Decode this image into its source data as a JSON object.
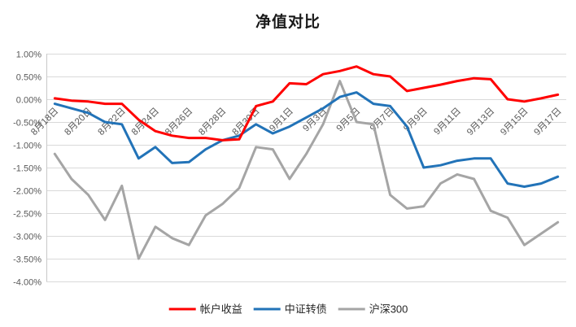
{
  "chart_data": {
    "type": "line",
    "title": "净值对比",
    "x_labels": [
      "8月18日",
      "8月20日",
      "8月22日",
      "8月24日",
      "8月26日",
      "8月28日",
      "8月30日",
      "9月1日",
      "9月3日",
      "9月5日",
      "9月7日",
      "9月9日",
      "9月11日",
      "9月13日",
      "9月15日",
      "9月17日"
    ],
    "label_every": 2,
    "y_ticks": [
      1.0,
      0.5,
      0.0,
      -0.5,
      -1.0,
      -1.5,
      -2.0,
      -2.5,
      -3.0,
      -3.5,
      -4.0
    ],
    "ylim": [
      -4.0,
      1.0
    ],
    "grid": "horizontal",
    "legend_position": "bottom",
    "colors": {
      "grid": "#d9d9d9",
      "axis_line": "#c9c9c9",
      "axis_text": "#595959",
      "title": "#1a1a1a"
    },
    "series": [
      {
        "name": "帐户收益",
        "color": "#ff0000",
        "values": [
          0.02,
          -0.03,
          -0.05,
          -0.1,
          -0.1,
          -0.45,
          -0.7,
          -0.8,
          -0.85,
          -0.85,
          -0.9,
          -0.88,
          -0.15,
          -0.05,
          0.35,
          0.33,
          0.55,
          0.62,
          0.72,
          0.55,
          0.5,
          0.18,
          0.25,
          0.32,
          0.4,
          0.46,
          0.44,
          0.0,
          -0.05,
          0.02,
          0.1
        ]
      },
      {
        "name": "中证转债",
        "color": "#2273b8",
        "values": [
          -0.1,
          -0.2,
          -0.3,
          -0.5,
          -0.55,
          -1.3,
          -1.05,
          -1.4,
          -1.38,
          -1.1,
          -0.9,
          -0.8,
          -0.55,
          -0.75,
          -0.6,
          -0.4,
          -0.2,
          0.05,
          0.15,
          -0.1,
          -0.15,
          -0.6,
          -1.5,
          -1.45,
          -1.35,
          -1.3,
          -1.3,
          -1.85,
          -1.92,
          -1.85,
          -1.7
        ]
      },
      {
        "name": "沪深300",
        "color": "#a5a5a5",
        "values": [
          -1.2,
          -1.75,
          -2.1,
          -2.65,
          -1.9,
          -3.5,
          -2.8,
          -3.05,
          -3.2,
          -2.55,
          -2.3,
          -1.95,
          -1.05,
          -1.1,
          -1.75,
          -1.2,
          -0.55,
          0.4,
          -0.5,
          -0.55,
          -2.1,
          -2.4,
          -2.35,
          -1.85,
          -1.65,
          -1.75,
          -2.45,
          -2.6,
          -3.2,
          -2.95,
          -2.7
        ]
      }
    ]
  }
}
